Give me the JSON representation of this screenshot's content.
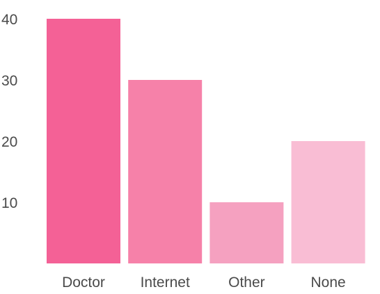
{
  "chart_data": {
    "type": "bar",
    "categories": [
      "Doctor",
      "Internet",
      "Other",
      "None"
    ],
    "values": [
      40,
      30,
      10,
      20
    ],
    "colors": [
      "#f46196",
      "#f681a9",
      "#f5a1c0",
      "#f9bdd4"
    ],
    "yticks": [
      10,
      20,
      30,
      40
    ],
    "ylim": [
      0,
      40
    ],
    "grid": false,
    "title": "",
    "xlabel": "",
    "ylabel": ""
  }
}
